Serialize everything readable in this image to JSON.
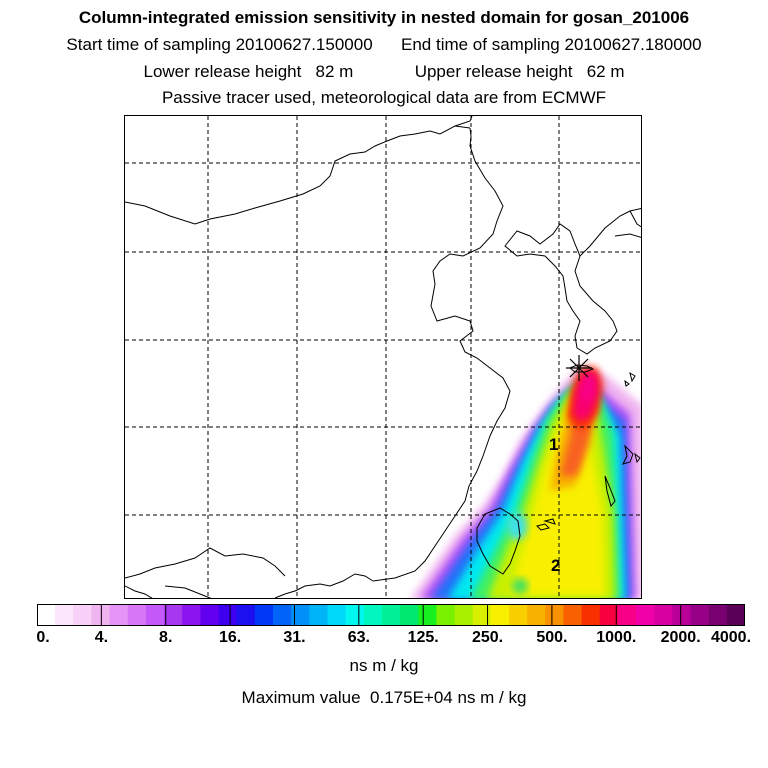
{
  "header": {
    "title": "Column-integrated emission sensitivity in nested domain for gosan_201006",
    "start_label": "Start time of sampling",
    "start_value": "20100627.150000",
    "end_label": "End time of sampling",
    "end_value": "20100627.180000",
    "lower_label": "Lower release height",
    "lower_value": "82 m",
    "upper_label": "Upper release height",
    "upper_value": "62 m",
    "info": "Passive tracer used, meteorological data are from ECMWF"
  },
  "map": {
    "markers": [
      {
        "label": "1"
      },
      {
        "label": "2"
      }
    ],
    "release_site_icon": "star-cross-icon"
  },
  "colorbar": {
    "colors": [
      "#ffffff",
      "#fce6fc",
      "#f8d0f8",
      "#f0b4f0",
      "#e694f8",
      "#d878f8",
      "#c458f8",
      "#a838f0",
      "#8c14f0",
      "#6400f0",
      "#4000f0",
      "#1c10f0",
      "#0038f8",
      "#0064f8",
      "#0090f8",
      "#00b4f8",
      "#00d8f8",
      "#00f8f0",
      "#00f8c0",
      "#00f098",
      "#00e870",
      "#18f020",
      "#78f000",
      "#a8f000",
      "#d8f000",
      "#f8f000",
      "#f8d000",
      "#f8b000",
      "#f89000",
      "#f86000",
      "#f83000",
      "#f80040",
      "#f80088",
      "#f000a8",
      "#d800a0",
      "#b80098",
      "#980088",
      "#780070",
      "#5a0058"
    ],
    "ticks": [
      "0.",
      "4.",
      "8.",
      "16.",
      "31.",
      "63.",
      "125.",
      "250.",
      "500.",
      "1000.",
      "2000.",
      "4000."
    ],
    "units": "ns m / kg"
  },
  "max_value_label": "Maximum value",
  "max_value": "0.175E+04",
  "max_value_units": "ns m / kg"
}
